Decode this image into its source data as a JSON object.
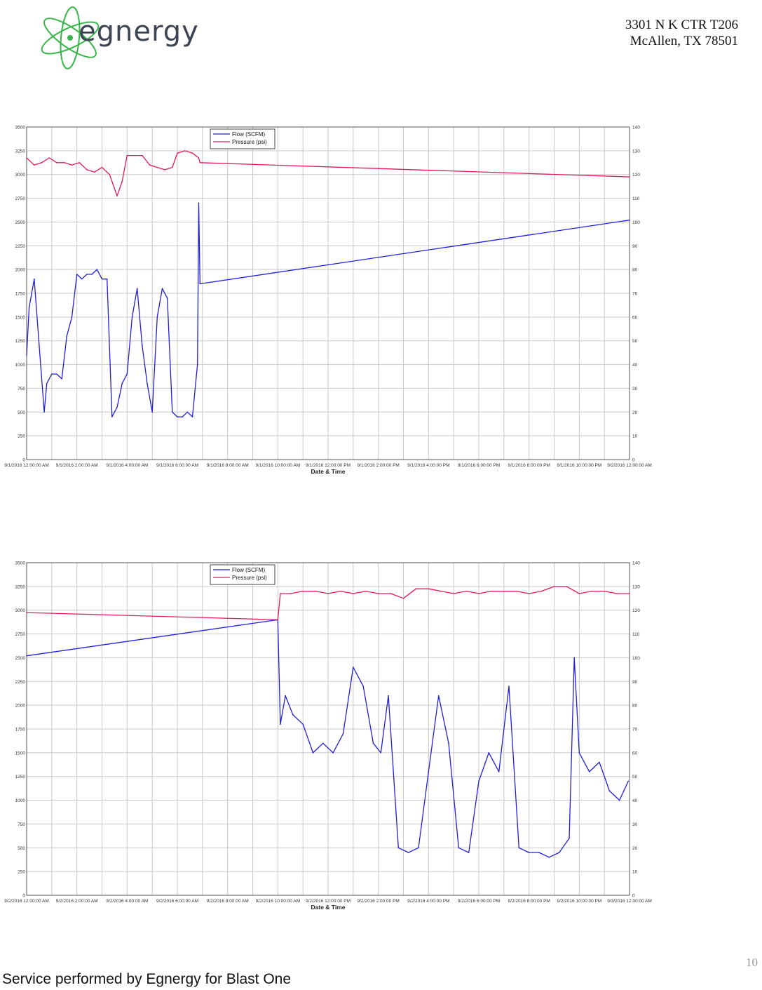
{
  "header": {
    "logo_text": "egnergy",
    "address_line1": "3301 N K CTR T206",
    "address_line2": "McAllen, TX 78501"
  },
  "colors": {
    "flow": "#1f1fd6",
    "pressure": "#e0185c",
    "grid": "#c9c9c9",
    "logo_green": "#39b54a"
  },
  "chart_data": [
    {
      "type": "line",
      "xlabel": "Date & Time",
      "x_tick_labels": [
        "9/1/2016 12:00:00 AM",
        "9/1/2016 2:00:00 AM",
        "9/1/2016 4:00:00 AM",
        "9/1/2016 6:00:00 AM",
        "9/1/2016 8:00:00 AM",
        "9/1/2016 10:00:00 AM",
        "9/1/2016 12:00:00 PM",
        "9/1/2016 2:00:00 PM",
        "9/1/2016 4:00:00 PM",
        "9/1/2016 6:00:00 PM",
        "9/1/2016 8:00:00 PM",
        "9/1/2016 10:00:00 PM",
        "9/2/2016 12:00:00 AM"
      ],
      "x_range_hours": [
        0,
        24
      ],
      "y_left": {
        "ylim": [
          0,
          3500
        ],
        "ticks": [
          0,
          250,
          500,
          750,
          1000,
          1250,
          1500,
          1750,
          2000,
          2250,
          2500,
          2750,
          3000,
          3250,
          3500
        ]
      },
      "y_right": {
        "ylim": [
          0,
          140
        ],
        "ticks": [
          0,
          10,
          20,
          30,
          40,
          50,
          60,
          70,
          80,
          90,
          100,
          110,
          120,
          130,
          140
        ]
      },
      "legend_position": "top-left",
      "series": [
        {
          "name": "Flow (SCFM)",
          "axis": "left",
          "color": "#1f1fd6",
          "x": [
            0,
            0.1,
            0.3,
            0.5,
            0.7,
            0.8,
            1.0,
            1.2,
            1.4,
            1.6,
            1.8,
            2.0,
            2.2,
            2.4,
            2.6,
            2.8,
            3.0,
            3.2,
            3.4,
            3.6,
            3.8,
            4.0,
            4.2,
            4.4,
            4.6,
            4.8,
            5.0,
            5.2,
            5.4,
            5.6,
            5.8,
            6.0,
            6.2,
            6.4,
            6.6,
            6.8,
            6.85,
            6.9,
            24
          ],
          "values": [
            1100,
            1600,
            1900,
            1200,
            500,
            800,
            900,
            900,
            850,
            1300,
            1500,
            1950,
            1900,
            1950,
            1950,
            2000,
            1900,
            1900,
            450,
            550,
            800,
            900,
            1500,
            1800,
            1200,
            800,
            500,
            1500,
            1800,
            1700,
            500,
            450,
            450,
            500,
            450,
            1000,
            2700,
            1850,
            2520
          ]
        },
        {
          "name": "Pressure (psi)",
          "axis": "right",
          "color": "#e0185c",
          "x": [
            0,
            0.3,
            0.6,
            0.9,
            1.2,
            1.5,
            1.8,
            2.1,
            2.4,
            2.7,
            3.0,
            3.3,
            3.6,
            3.8,
            4.0,
            4.3,
            4.6,
            4.9,
            5.2,
            5.5,
            5.8,
            6.0,
            6.3,
            6.6,
            6.85,
            6.9,
            24
          ],
          "values": [
            127,
            124,
            125,
            127,
            125,
            125,
            124,
            125,
            122,
            121,
            123,
            120,
            111,
            117,
            128,
            128,
            128,
            124,
            123,
            122,
            123,
            129,
            130,
            129,
            127,
            125,
            119
          ]
        }
      ]
    },
    {
      "type": "line",
      "xlabel": "Date & Time",
      "x_tick_labels": [
        "9/2/2016 12:00:00 AM",
        "9/2/2016 2:00:00 AM",
        "9/2/2016 4:00:00 AM",
        "9/2/2016 6:00:00 AM",
        "9/2/2016 8:00:00 AM",
        "9/2/2016 10:00:00 AM",
        "9/2/2016 12:00:00 PM",
        "9/2/2016 2:00:00 PM",
        "9/2/2016 4:00:00 PM",
        "9/2/2016 6:00:00 PM",
        "9/2/2016 8:00:00 PM",
        "9/2/2016 10:00:00 PM",
        "9/3/2016 12:00:00 AM"
      ],
      "x_range_hours": [
        0,
        24
      ],
      "y_left": {
        "ylim": [
          0,
          3500
        ],
        "ticks": [
          0,
          250,
          500,
          750,
          1000,
          1250,
          1500,
          1750,
          2000,
          2250,
          2500,
          2750,
          3000,
          3250,
          3500
        ]
      },
      "y_right": {
        "ylim": [
          0,
          140
        ],
        "ticks": [
          0,
          10,
          20,
          30,
          40,
          50,
          60,
          70,
          80,
          90,
          100,
          110,
          120,
          130,
          140
        ]
      },
      "legend_position": "top-left",
      "series": [
        {
          "name": "Flow (SCFM)",
          "axis": "left",
          "color": "#1f1fd6",
          "x": [
            0,
            10.0,
            10.1,
            10.3,
            10.6,
            11.0,
            11.4,
            11.8,
            12.2,
            12.6,
            13.0,
            13.4,
            13.8,
            14.1,
            14.4,
            14.8,
            15.2,
            15.6,
            16.0,
            16.4,
            16.8,
            17.2,
            17.6,
            18.0,
            18.4,
            18.8,
            19.2,
            19.6,
            20.0,
            20.4,
            20.8,
            21.2,
            21.6,
            21.8,
            22.0,
            22.4,
            22.8,
            23.2,
            23.6,
            23.95
          ],
          "values": [
            2520,
            2900,
            1800,
            2100,
            1900,
            1800,
            1500,
            1600,
            1500,
            1700,
            2400,
            2200,
            1600,
            1500,
            2100,
            500,
            450,
            500,
            1300,
            2100,
            1600,
            500,
            450,
            1200,
            1500,
            1300,
            2200,
            500,
            450,
            450,
            400,
            450,
            600,
            2500,
            1500,
            1300,
            1400,
            1100,
            1000,
            1200
          ]
        },
        {
          "name": "Pressure (psi)",
          "axis": "right",
          "color": "#e0185c",
          "x": [
            0,
            10.0,
            10.1,
            10.5,
            11.0,
            11.5,
            12.0,
            12.5,
            13.0,
            13.5,
            14.0,
            14.5,
            15.0,
            15.5,
            16.0,
            16.5,
            17.0,
            17.5,
            18.0,
            18.5,
            19.0,
            19.5,
            20.0,
            20.5,
            21.0,
            21.5,
            22.0,
            22.5,
            23.0,
            23.5,
            24
          ],
          "values": [
            119,
            116,
            127,
            127,
            128,
            128,
            127,
            128,
            127,
            128,
            127,
            127,
            125,
            129,
            129,
            128,
            127,
            128,
            127,
            128,
            128,
            128,
            127,
            128,
            130,
            130,
            127,
            128,
            128,
            127,
            127
          ]
        }
      ]
    }
  ],
  "page_number": "10",
  "footer_text": "Service performed by Egnergy for Blast One"
}
